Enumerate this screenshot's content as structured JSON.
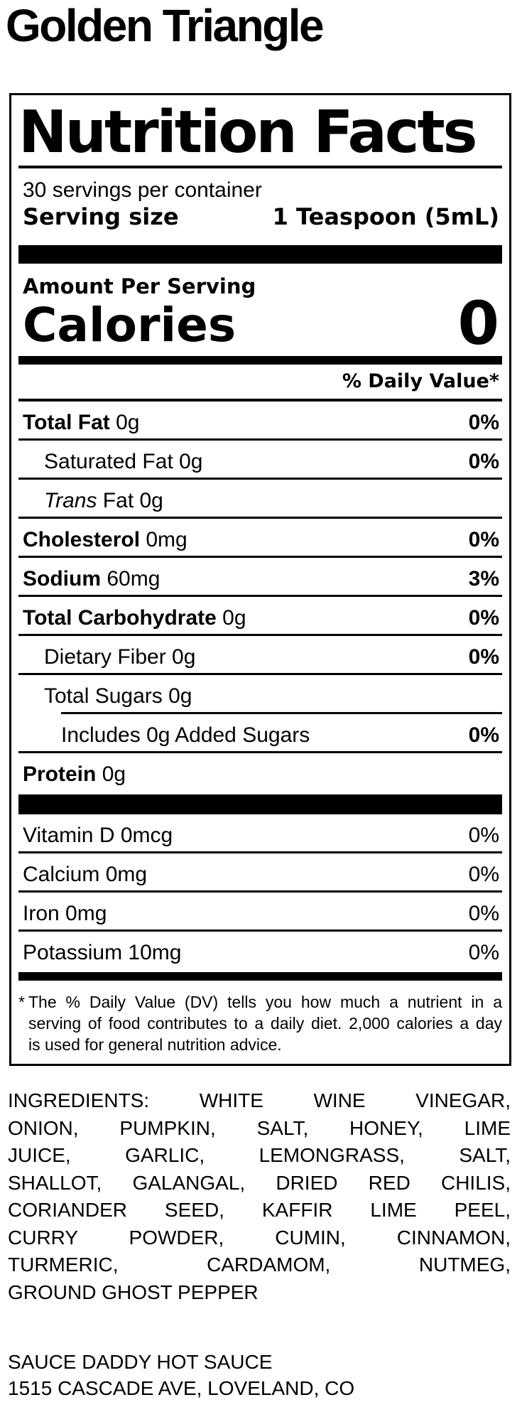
{
  "colors": {
    "text": "#000000",
    "background": "#ffffff"
  },
  "page": {
    "product_title": "Golden Triangle"
  },
  "nutrition_label": {
    "title": "Nutrition Facts",
    "servings_per_container": "30 servings per container",
    "serving_size_label": "Serving size",
    "serving_size_value": "1 Teaspoon (5mL)",
    "amount_per_serving": "Amount Per Serving",
    "calories_label": "Calories",
    "calories_value": "0",
    "daily_value_header": "% Daily Value*",
    "rows": [
      {
        "name": "Total Fat",
        "amount": "0g",
        "dv": "0%",
        "bold": true,
        "indent": 0,
        "dv_bold": true
      },
      {
        "name": "Saturated Fat",
        "amount": "0g",
        "dv": "0%",
        "bold": false,
        "indent": 1,
        "dv_bold": true
      },
      {
        "name_italic": "Trans",
        "name": " Fat",
        "amount": "0g",
        "dv": "",
        "bold": false,
        "indent": 1
      },
      {
        "name": "Cholesterol",
        "amount": "0mg",
        "dv": "0%",
        "bold": true,
        "indent": 0,
        "dv_bold": true
      },
      {
        "name": "Sodium",
        "amount": "60mg",
        "dv": "3%",
        "bold": true,
        "indent": 0,
        "dv_bold": true
      },
      {
        "name": "Total Carbohydrate",
        "amount": "0g",
        "dv": "0%",
        "bold": true,
        "indent": 0,
        "dv_bold": true
      },
      {
        "name": "Dietary Fiber",
        "amount": "0g",
        "dv": "0%",
        "bold": false,
        "indent": 1,
        "dv_bold": true
      },
      {
        "name": "Total Sugars",
        "amount": "0g",
        "dv": "",
        "bold": false,
        "indent": 1,
        "no_rule": true,
        "partial_rule_below": true
      },
      {
        "name": "Includes 0g Added Sugars",
        "amount": "",
        "dv": "0%",
        "bold": false,
        "indent": 2,
        "dv_bold": true
      },
      {
        "name": "Protein",
        "amount": "0g",
        "dv": "",
        "bold": true,
        "indent": 0,
        "no_rule": true
      }
    ],
    "micronutrients": [
      {
        "name": "Vitamin D",
        "amount": "0mcg",
        "dv": "0%"
      },
      {
        "name": "Calcium",
        "amount": "0mg",
        "dv": "0%"
      },
      {
        "name": "Iron",
        "amount": "0mg",
        "dv": "0%"
      },
      {
        "name": "Potassium",
        "amount": "10mg",
        "dv": "0%",
        "no_rule": true
      }
    ],
    "footnote_lines": [
      {
        "marker": "*",
        "text": "The % Daily Value (DV) tells you how much a nutrient in a",
        "justify": true
      },
      {
        "text": "serving of food contributes to a daily diet. 2,000 calories a day",
        "justify": true,
        "indent": true
      },
      {
        "text": "is used for general nutrition advice.",
        "justify": false,
        "indent": true
      }
    ]
  },
  "ingredients_lines": [
    "INGREDIENTS: WHITE WINE VINEGAR,",
    "ONION, PUMPKIN, SALT, HONEY, LIME",
    "JUICE, GARLIC, LEMONGRASS, SALT,",
    "SHALLOT, GALANGAL, DRIED RED CHILIS,",
    "CORIANDER SEED, KAFFIR LIME PEEL,",
    "CURRY POWDER, CUMIN, CINNAMON,",
    "TURMERIC, CARDAMOM, NUTMEG,",
    "GROUND GHOST PEPPER"
  ],
  "manufacturer": {
    "name": "SAUCE DADDY HOT SAUCE",
    "address": "1515 CASCADE AVE, LOVELAND, CO"
  }
}
